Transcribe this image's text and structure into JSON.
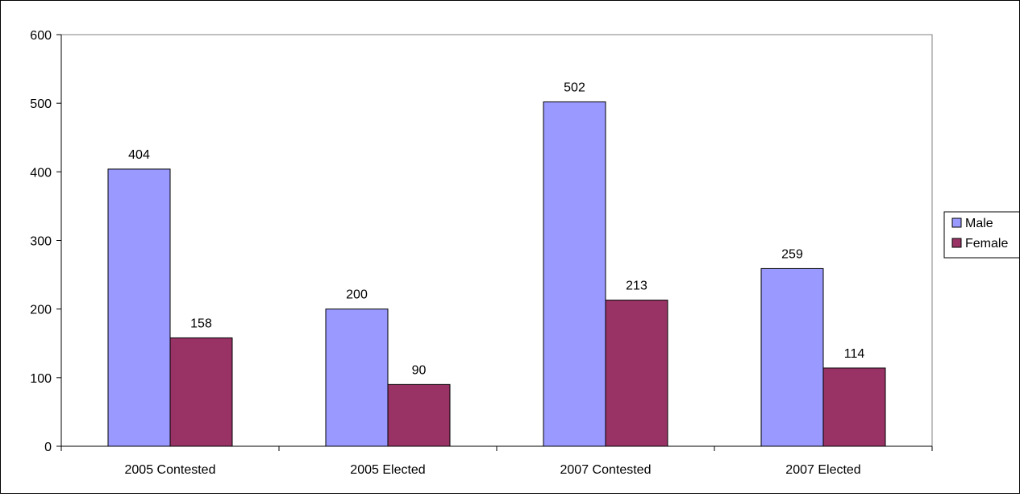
{
  "chart_data": {
    "type": "bar",
    "title": "",
    "xlabel": "",
    "ylabel": "",
    "categories": [
      "2005 Contested",
      "2005 Elected",
      "2007 Contested",
      "2007 Elected"
    ],
    "series": [
      {
        "name": "Male",
        "values": [
          404,
          200,
          502,
          259
        ],
        "color": "#9999ff"
      },
      {
        "name": "Female",
        "values": [
          158,
          90,
          213,
          114
        ],
        "color": "#993366"
      }
    ],
    "ylim": [
      0,
      600
    ],
    "yticks": [
      0,
      100,
      200,
      300,
      400,
      500,
      600
    ],
    "grid": false,
    "legend_position": "right",
    "data_labels": true
  }
}
